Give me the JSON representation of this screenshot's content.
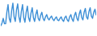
{
  "chart_data": {
    "type": "line",
    "categories": [
      null,
      null,
      null,
      null,
      null,
      null,
      null,
      null,
      null,
      null,
      null,
      null,
      null,
      null,
      null,
      null,
      null,
      null,
      null,
      null,
      null,
      null,
      null,
      null,
      null,
      null,
      null,
      null,
      null,
      null,
      null,
      null,
      null,
      null,
      null,
      null,
      null,
      null,
      null,
      null,
      null,
      null,
      null,
      null,
      null,
      null,
      null,
      null,
      null,
      null,
      null,
      null,
      null,
      null,
      null,
      null,
      null,
      null,
      null,
      null,
      null,
      null,
      null,
      null,
      null,
      null,
      null,
      null,
      null,
      null,
      null,
      null,
      null,
      null,
      null,
      null,
      null,
      null,
      null,
      null
    ],
    "values": [
      12,
      16,
      22,
      15,
      15,
      30,
      40,
      22,
      17,
      32,
      42,
      24,
      18,
      33,
      41,
      24,
      17,
      31,
      40,
      23,
      17,
      30,
      38,
      23,
      18,
      29,
      36,
      23,
      18,
      27,
      33,
      22,
      19,
      26,
      30,
      22,
      19,
      24,
      27,
      22,
      20,
      23,
      25,
      21,
      19,
      22,
      24,
      20,
      19,
      22,
      24,
      20,
      18,
      23,
      25,
      20,
      18,
      24,
      27,
      21,
      18,
      26,
      30,
      22,
      19,
      28,
      33,
      23,
      20,
      30,
      35,
      24,
      21,
      31,
      36,
      25,
      22,
      30,
      34,
      26
    ],
    "color": "#3d8fd6",
    "ylim": [
      0,
      45
    ],
    "grid": false,
    "tick_labels": false
  }
}
